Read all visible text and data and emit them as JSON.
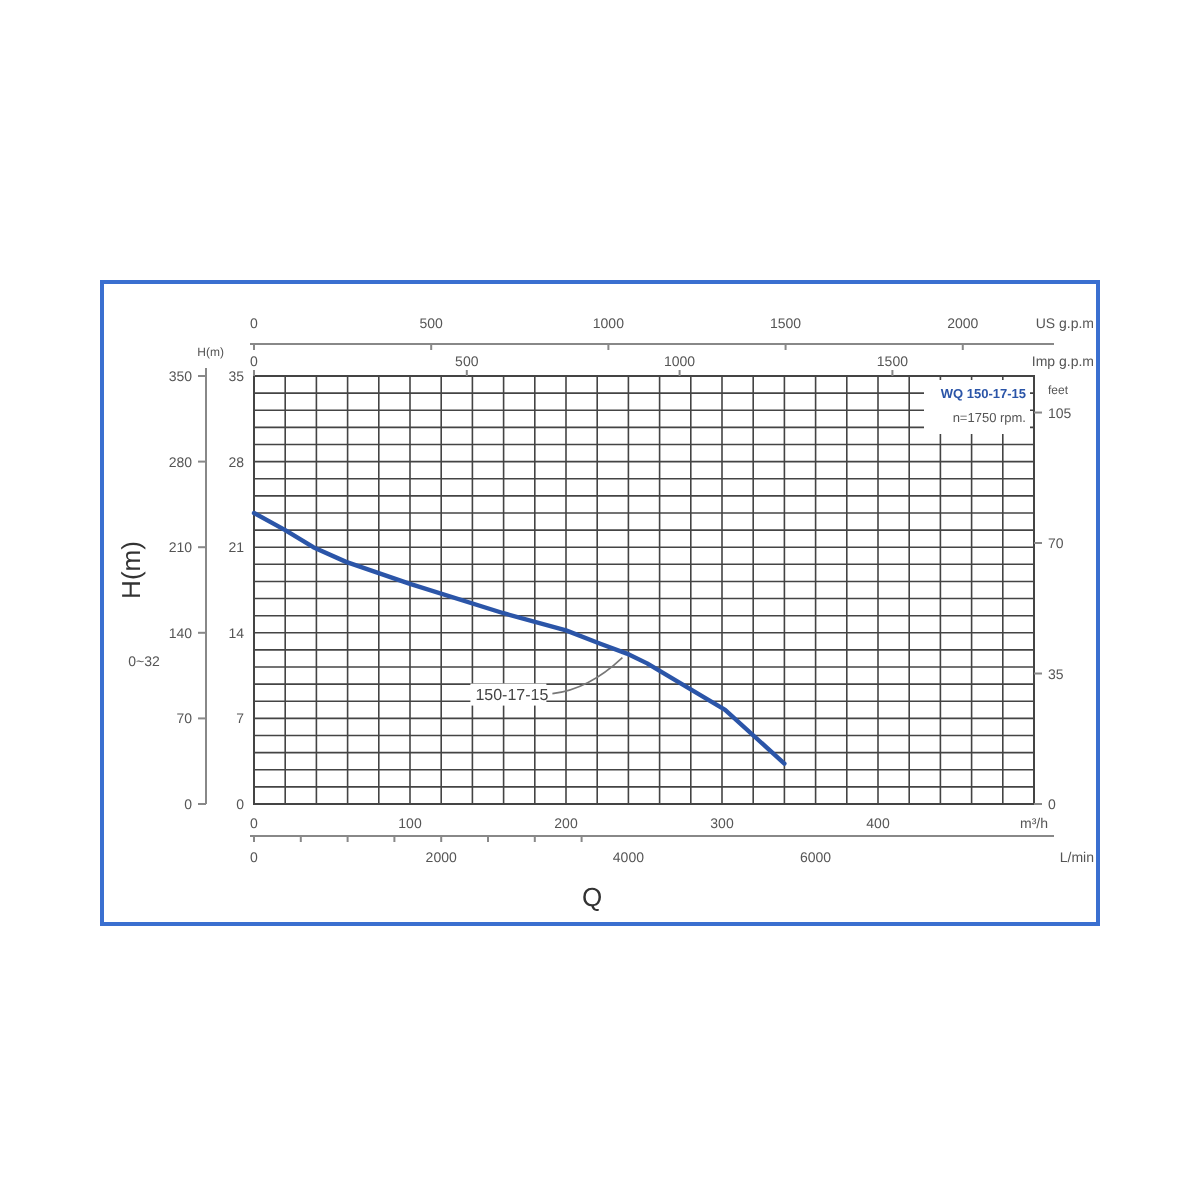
{
  "chart_data": {
    "type": "line",
    "xlabel": "Q",
    "ylabel": "H(m)",
    "xlim": [
      0,
      500
    ],
    "xticks": [
      0,
      {
        "value": 20,
        "label": null
      },
      {
        "value": 40,
        "label": null
      },
      {
        "value": 60,
        "label": null
      },
      {
        "value": 80,
        "label": null
      },
      100,
      {
        "value": 120,
        "label": null
      },
      {
        "value": 140,
        "label": null
      },
      {
        "value": 160,
        "label": null
      },
      {
        "value": 180,
        "label": null
      },
      200,
      {
        "value": 220,
        "label": null
      },
      {
        "value": 240,
        "label": null
      },
      {
        "value": 260,
        "label": null
      },
      {
        "value": 280,
        "label": null
      },
      300,
      {
        "value": 320,
        "label": null
      },
      {
        "value": 340,
        "label": null
      },
      {
        "value": 360,
        "label": null
      },
      {
        "value": 380,
        "label": null
      },
      400,
      {
        "value": 420,
        "label": null
      },
      {
        "value": 440,
        "label": null
      },
      {
        "value": 460,
        "label": null
      },
      {
        "value": 480,
        "label": null
      },
      {
        "value": 500,
        "label": "m³/h"
      }
    ],
    "ylim": [
      0,
      35
    ],
    "yticks": [
      0,
      {
        "value": 1.4,
        "label": null
      },
      {
        "value": 2.8,
        "label": null
      },
      {
        "value": 4.2,
        "label": null
      },
      {
        "value": 5.6,
        "label": null
      },
      7,
      {
        "value": 8.4,
        "label": null
      },
      {
        "value": 9.8,
        "label": null
      },
      {
        "value": 11.2,
        "label": null
      },
      {
        "value": 12.6,
        "label": null
      },
      14,
      {
        "value": 15.4,
        "label": null
      },
      {
        "value": 16.8,
        "label": null
      },
      {
        "value": 18.2,
        "label": null
      },
      {
        "value": 19.6,
        "label": null
      },
      21,
      {
        "value": 22.4,
        "label": null
      },
      {
        "value": 23.8,
        "label": null
      },
      {
        "value": 25.2,
        "label": null
      },
      {
        "value": 26.6,
        "label": null
      },
      28,
      {
        "value": 29.4,
        "label": null
      },
      {
        "value": 30.8,
        "label": null
      },
      {
        "value": 32.2,
        "label": null
      },
      {
        "value": 33.6,
        "label": null
      },
      35
    ],
    "y2label": "H(m)",
    "y2lim": [
      0,
      350
    ],
    "y2ticks": [
      0,
      70,
      140,
      210,
      280,
      350
    ],
    "y3label": "feet",
    "y3lim": [
      0,
      114.8
    ],
    "y3ticks": [
      0,
      35,
      70,
      105
    ],
    "x2label": "US g.p.m",
    "x2lim": [
      0,
      2201
    ],
    "x2ticks": [
      0,
      500,
      1000,
      1500,
      2000
    ],
    "grid": true,
    "series": [
      {
        "color": "#2b55a8",
        "x": [
          0,
          20,
          38,
          59,
          100,
          160,
          200,
          222,
          239,
          252,
          302,
          340
        ],
        "values": [
          23.8,
          22.4,
          21,
          19.8,
          18,
          15.6,
          14.2,
          13.1,
          12.3,
          11.5,
          7.7,
          3.3
        ]
      }
    ],
    "annotations": [
      "WQ 150-17-15",
      "n=1750 rpm.",
      "0~32",
      {
        "text": "150-17-15",
        "x": 240,
        "y": 12.3
      },
      "Imp g.p.m",
      "0",
      "500",
      "1000",
      "1500",
      "L/min",
      "0",
      "2000",
      "4000",
      "6000"
    ]
  }
}
